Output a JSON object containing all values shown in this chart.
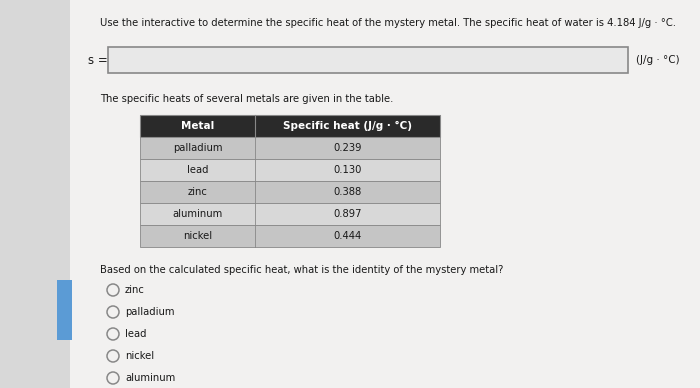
{
  "title_text": "Use the interactive to determine the specific heat of the mystery metal. The specific heat of water is 4.184 J/g · °C.",
  "s_label": "s =",
  "unit_label": "(J/g · °C)",
  "table_title": "The specific heats of several metals are given in the table.",
  "table_header": [
    "Metal",
    "Specific heat (J/g · °C)"
  ],
  "table_rows": [
    [
      "palladium",
      "0.239"
    ],
    [
      "lead",
      "0.130"
    ],
    [
      "zinc",
      "0.388"
    ],
    [
      "aluminum",
      "0.897"
    ],
    [
      "nickel",
      "0.444"
    ]
  ],
  "question_text": "Based on the calculated specific heat, what is the identity of the mystery metal?",
  "options": [
    "zinc",
    "palladium",
    "lead",
    "nickel",
    "aluminum"
  ],
  "bg_color": "#d8d8d8",
  "page_color": "#f2f1f0",
  "white": "#ffffff",
  "table_header_bg": "#2a2a2a",
  "table_row_odd": "#c5c5c5",
  "table_row_even": "#d8d8d8",
  "text_color": "#1a1a1a",
  "border_color": "#888888",
  "left_accent_color": "#5b9bd5",
  "input_bg": "#e8e8e8"
}
